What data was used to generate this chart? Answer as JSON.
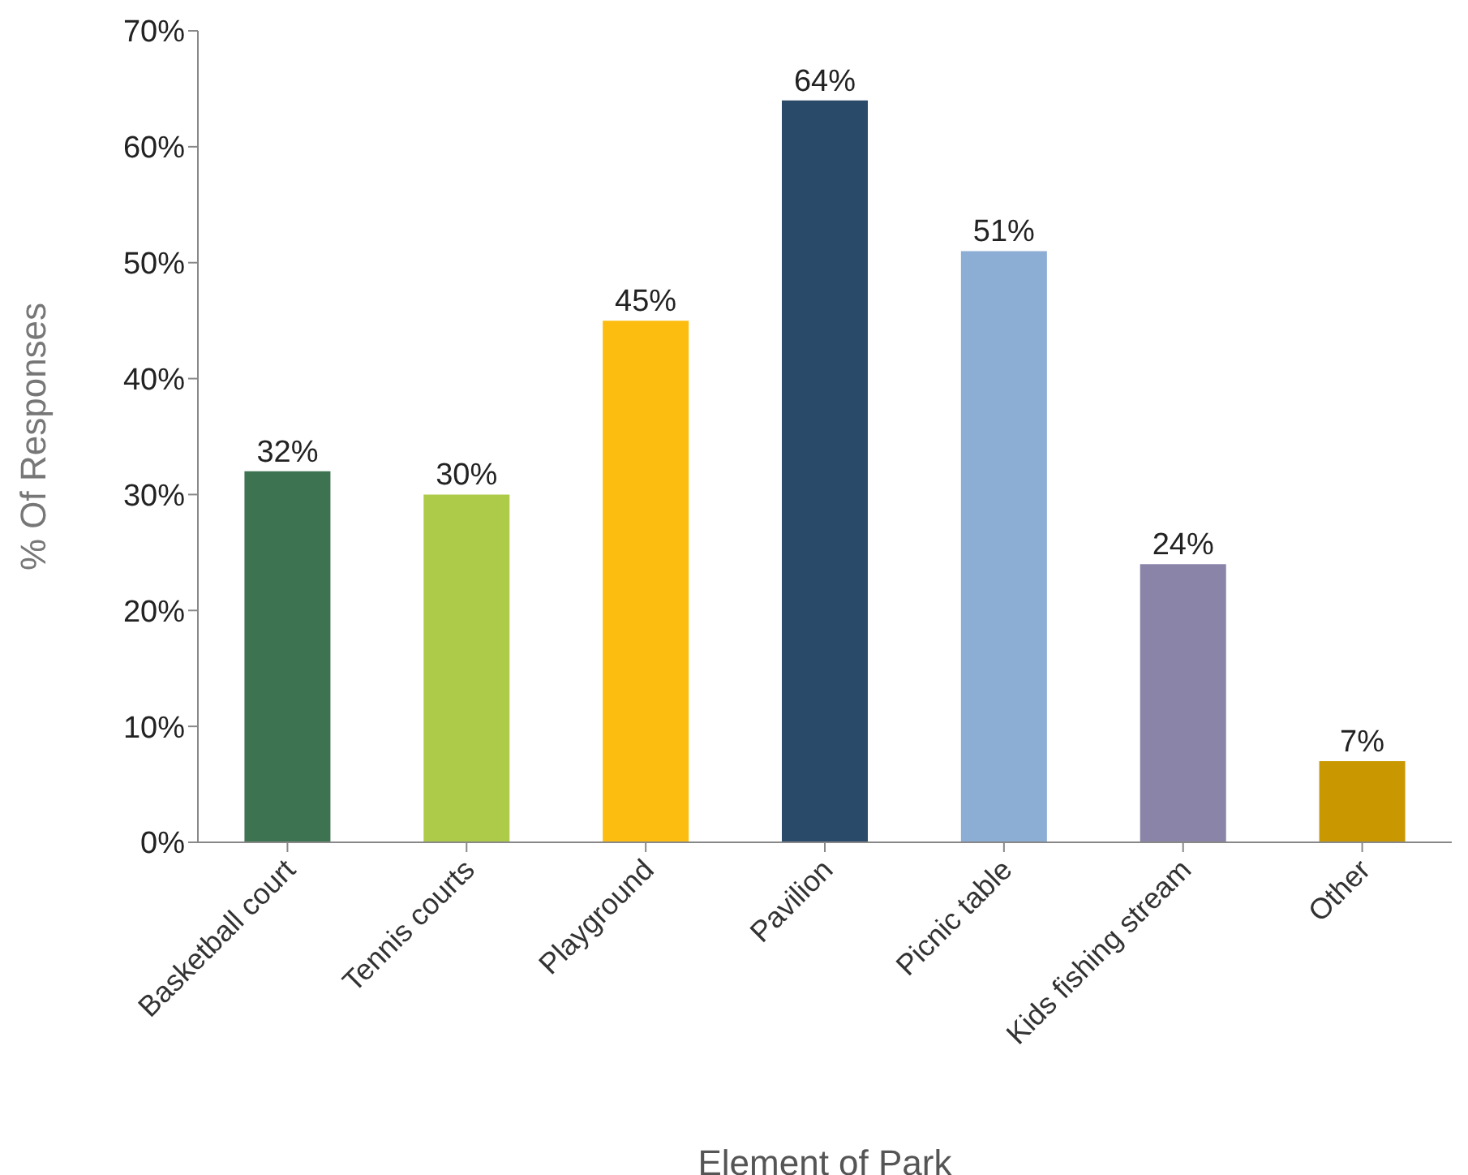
{
  "chart_data": {
    "type": "bar",
    "xlabel": "Element of Park",
    "ylabel": "% Of Responses",
    "categories": [
      "Basketball court",
      "Tennis courts",
      "Playground",
      "Pavilion",
      "Picnic table",
      "Kids fishing stream",
      "Other"
    ],
    "values": [
      32,
      30,
      45,
      64,
      51,
      24,
      7
    ],
    "value_labels": [
      "32%",
      "30%",
      "45%",
      "64%",
      "51%",
      "24%",
      "7%"
    ],
    "colors": [
      "#3d7350",
      "#adcb48",
      "#fdbd10",
      "#294a68",
      "#8cadd4",
      "#8a84a8",
      "#c99700"
    ],
    "ylim": [
      0,
      70
    ],
    "yticks": [
      {
        "value": 0,
        "label": "0%"
      },
      {
        "value": 10,
        "label": "10%"
      },
      {
        "value": 20,
        "label": "20%"
      },
      {
        "value": 30,
        "label": "30%"
      },
      {
        "value": 40,
        "label": "40%"
      },
      {
        "value": 50,
        "label": "50%"
      },
      {
        "value": 60,
        "label": "60%"
      },
      {
        "value": 70,
        "label": "70%"
      }
    ],
    "grid": false,
    "legend": false
  }
}
